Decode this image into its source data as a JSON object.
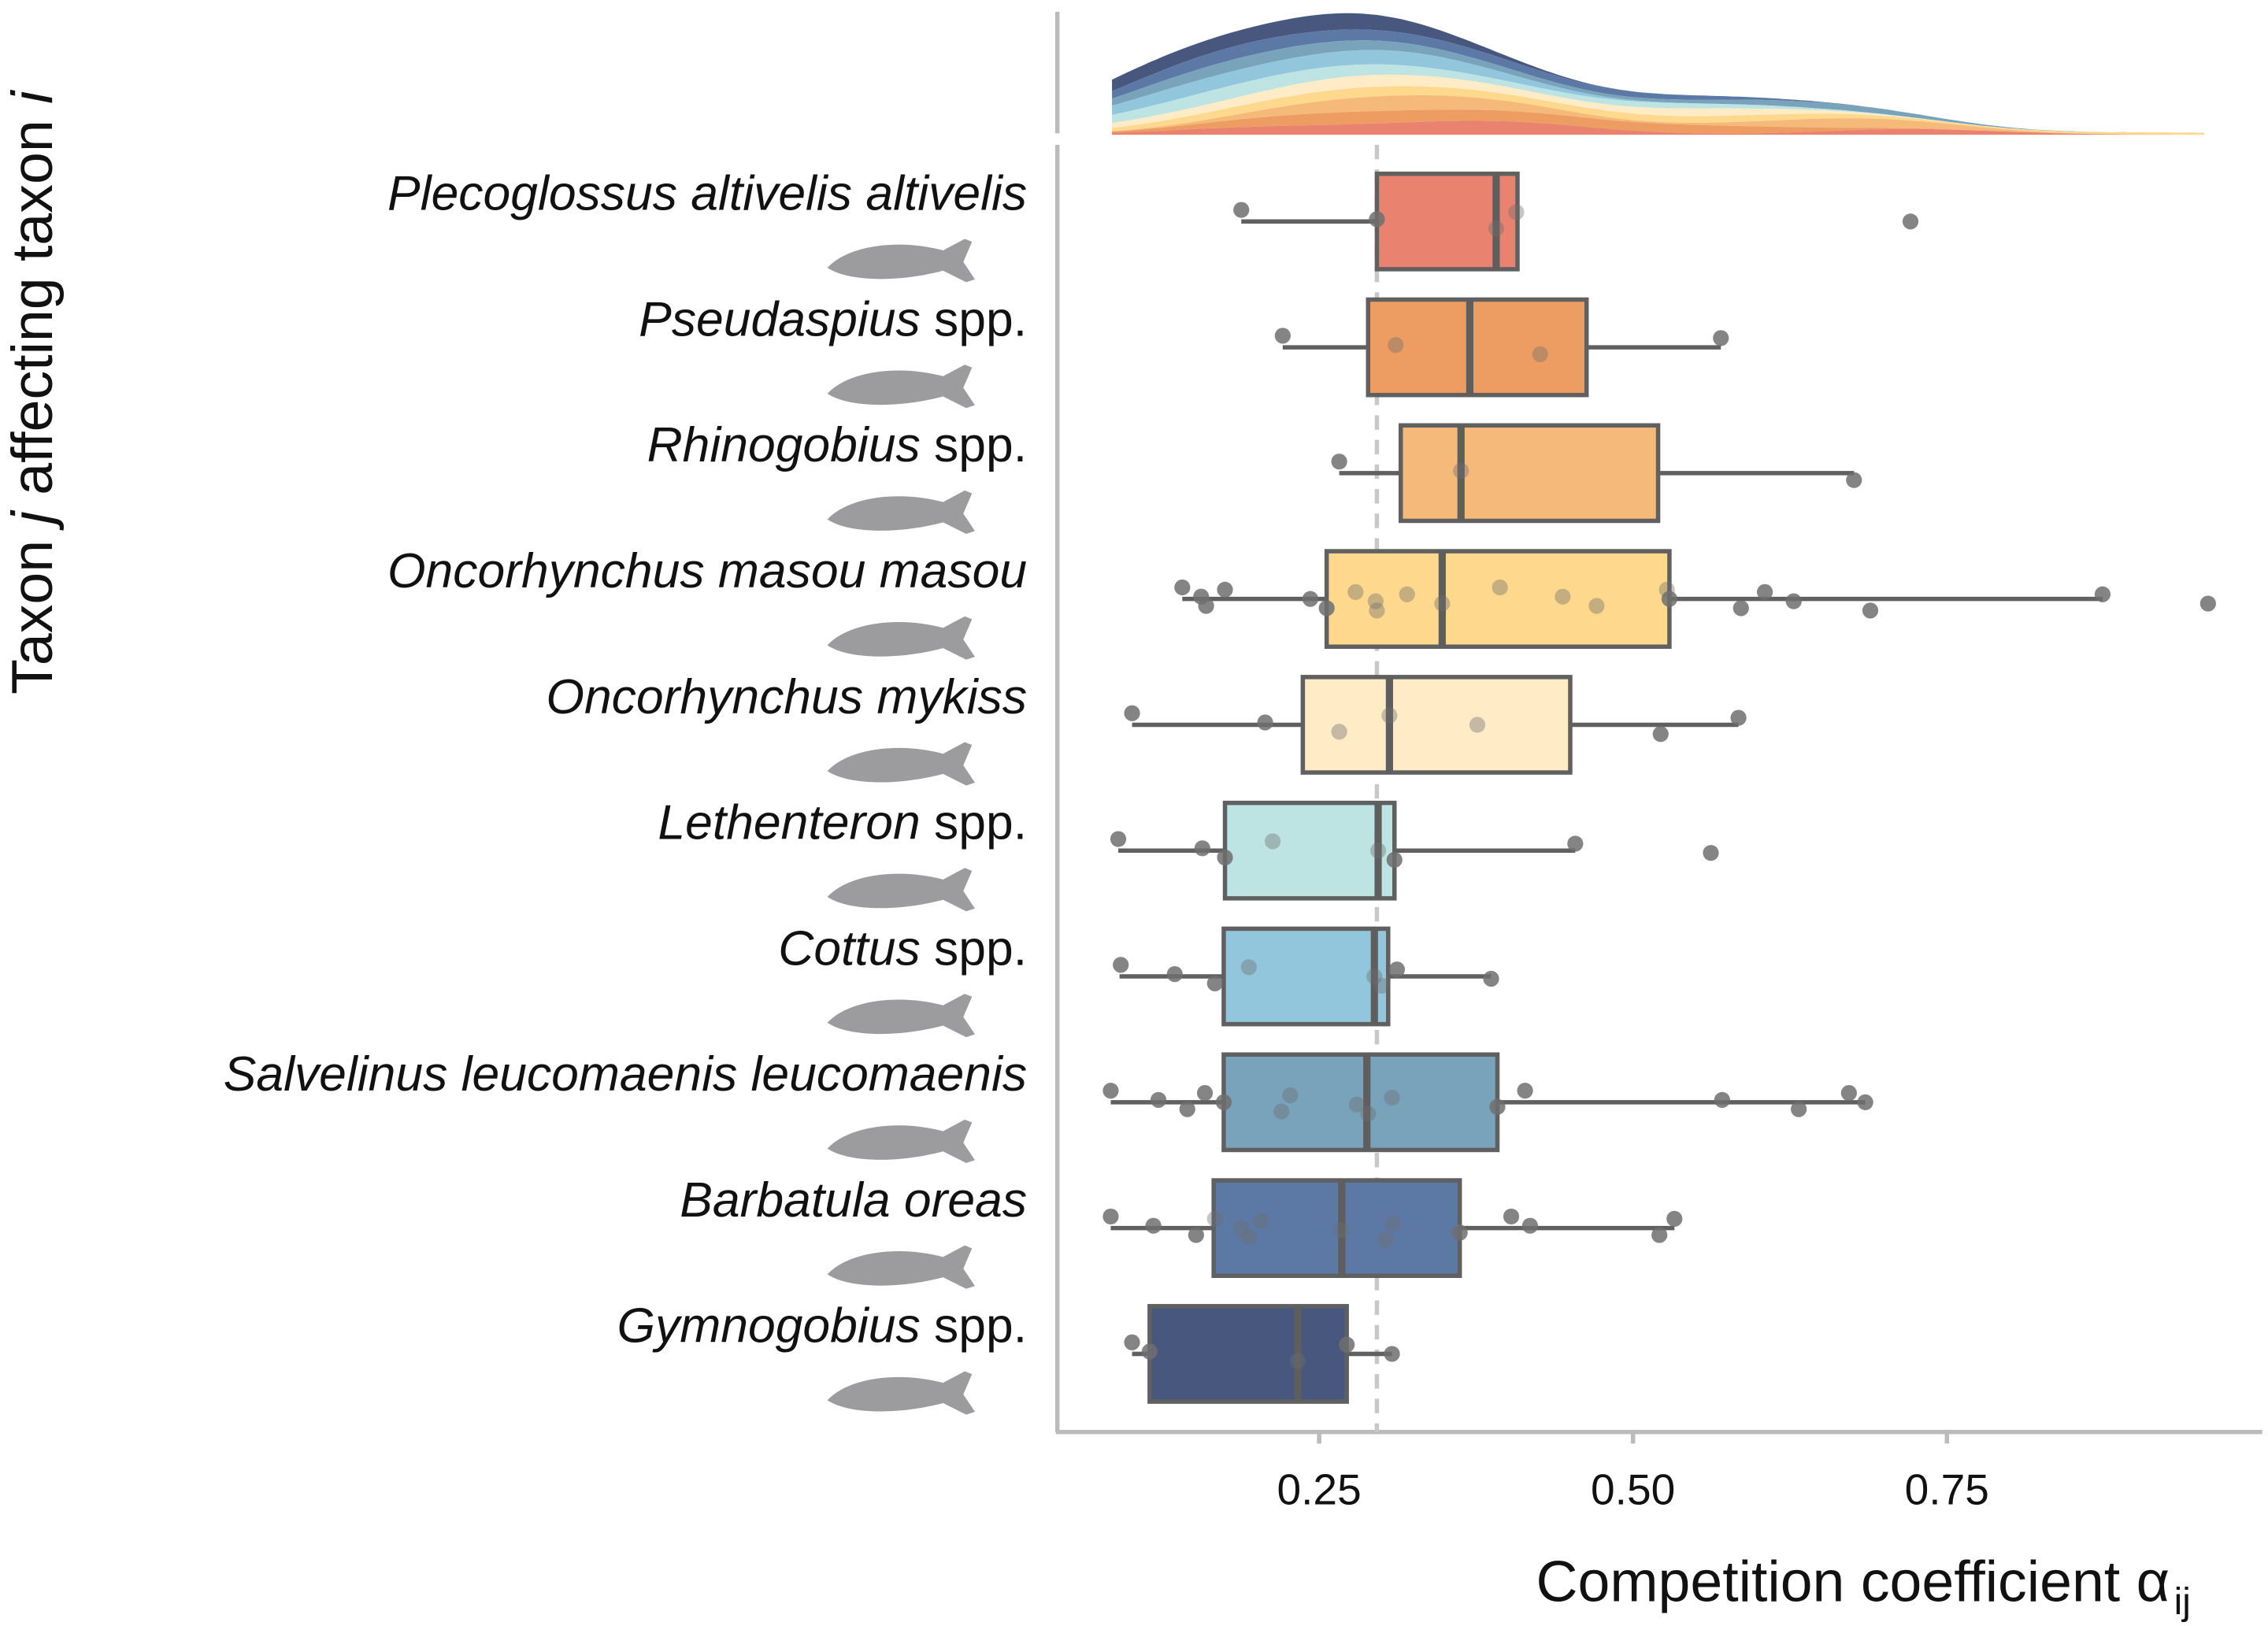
{
  "chart_data": {
    "type": "box",
    "xlabel": "Competition coefficient α",
    "xlabel_subscript": "ij",
    "ylabel_parts": [
      "Taxon ",
      "j",
      " affecting taxon ",
      "i"
    ],
    "xlim": [
      0.02,
      0.98
    ],
    "xticks": [
      0.25,
      0.5,
      0.75
    ],
    "xtick_labels": [
      "0.25",
      "0.50",
      "0.75"
    ],
    "reference_line": 0.296,
    "taxa": [
      {
        "name_italic": "Plecoglossus altivelis altivelis",
        "name_suffix": "",
        "color": "#EA8270",
        "q1": 0.296,
        "median": 0.391,
        "q3": 0.408,
        "whisker_low": 0.188,
        "whisker_high": 0.408,
        "points": [
          0.188,
          0.296,
          0.391,
          0.407,
          0.721
        ]
      },
      {
        "name_italic": "Pseudaspius",
        "name_suffix": " spp.",
        "color": "#EE9D62",
        "q1": 0.289,
        "median": 0.37,
        "q3": 0.463,
        "whisker_low": 0.221,
        "whisker_high": 0.57,
        "points": [
          0.221,
          0.311,
          0.426,
          0.57
        ]
      },
      {
        "name_italic": "Rhinogobius",
        "name_suffix": " spp.",
        "color": "#F5BA7A",
        "q1": 0.315,
        "median": 0.363,
        "q3": 0.52,
        "whisker_low": 0.266,
        "whisker_high": 0.676,
        "points": [
          0.266,
          0.363,
          0.676
        ]
      },
      {
        "name_italic": "Oncorhynchus masou masou",
        "name_suffix": "",
        "color": "#FED98D",
        "q1": 0.256,
        "median": 0.348,
        "q3": 0.529,
        "whisker_low": 0.141,
        "whisker_high": 0.874,
        "points": [
          0.141,
          0.156,
          0.16,
          0.175,
          0.243,
          0.256,
          0.279,
          0.295,
          0.296,
          0.32,
          0.348,
          0.394,
          0.444,
          0.471,
          0.527,
          0.529,
          0.586,
          0.605,
          0.628,
          0.689,
          0.874,
          0.958
        ]
      },
      {
        "name_italic": "Oncorhynchus mykiss",
        "name_suffix": "",
        "color": "#FFEBC6",
        "q1": 0.237,
        "median": 0.306,
        "q3": 0.45,
        "whisker_low": 0.101,
        "whisker_high": 0.584,
        "points": [
          0.101,
          0.207,
          0.266,
          0.306,
          0.376,
          0.522,
          0.584
        ]
      },
      {
        "name_italic": "Lethenteron",
        "name_suffix": " spp.",
        "color": "#BDE4E3",
        "q1": 0.175,
        "median": 0.297,
        "q3": 0.31,
        "whisker_low": 0.09,
        "whisker_high": 0.454,
        "points": [
          0.09,
          0.157,
          0.175,
          0.213,
          0.297,
          0.31,
          0.454,
          0.562
        ]
      },
      {
        "name_italic": "Cottus",
        "name_suffix": " spp.",
        "color": "#91C6DC",
        "q1": 0.174,
        "median": 0.294,
        "q3": 0.305,
        "whisker_low": 0.091,
        "whisker_high": 0.387,
        "points": [
          0.092,
          0.135,
          0.167,
          0.194,
          0.294,
          0.3,
          0.312,
          0.387
        ]
      },
      {
        "name_italic": "Salvelinus leucomaenis leucomaenis",
        "name_suffix": "",
        "color": "#79A2BB",
        "q1": 0.174,
        "median": 0.288,
        "q3": 0.392,
        "whisker_low": 0.084,
        "whisker_high": 0.685,
        "points": [
          0.084,
          0.122,
          0.145,
          0.159,
          0.174,
          0.22,
          0.227,
          0.28,
          0.289,
          0.308,
          0.392,
          0.414,
          0.571,
          0.632,
          0.672,
          0.685
        ]
      },
      {
        "name_italic": "Barbatula oreas",
        "name_suffix": "",
        "color": "#5C79A6",
        "q1": 0.166,
        "median": 0.268,
        "q3": 0.362,
        "whisker_low": 0.084,
        "whisker_high": 0.533,
        "points": [
          0.084,
          0.118,
          0.152,
          0.167,
          0.188,
          0.194,
          0.204,
          0.268,
          0.303,
          0.309,
          0.362,
          0.403,
          0.418,
          0.521,
          0.533
        ]
      },
      {
        "name_italic": "Gymnogobius",
        "name_suffix": " spp.",
        "color": "#47577E",
        "q1": 0.115,
        "median": 0.233,
        "q3": 0.272,
        "whisker_low": 0.101,
        "whisker_high": 0.308,
        "points": [
          0.101,
          0.115,
          0.233,
          0.272,
          0.308
        ]
      }
    ]
  }
}
